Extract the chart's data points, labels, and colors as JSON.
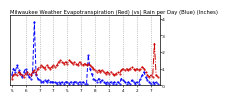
{
  "title": "Milwaukee Weather Evapotranspiration (Red) (vs) Rain per Day (Blue) (Inches)",
  "rain": [
    0.06,
    0.1,
    0.08,
    0.12,
    0.09,
    0.07,
    0.05,
    0.08,
    0.1,
    0.07,
    0.05,
    0.04,
    0.08,
    0.38,
    0.06,
    0.04,
    0.03,
    0.02,
    0.02,
    0.03,
    0.02,
    0.03,
    0.02,
    0.02,
    0.02,
    0.02,
    0.01,
    0.02,
    0.01,
    0.02,
    0.01,
    0.02,
    0.02,
    0.01,
    0.02,
    0.01,
    0.02,
    0.02,
    0.01,
    0.02,
    0.01,
    0.02,
    0.01,
    0.01,
    0.18,
    0.1,
    0.07,
    0.04,
    0.03,
    0.02,
    0.04,
    0.02,
    0.03,
    0.02,
    0.01,
    0.02,
    0.01,
    0.02,
    0.01,
    0.02,
    0.01,
    0.02,
    0.01,
    0.04,
    0.03,
    0.02,
    0.01,
    0.02,
    0.01,
    0.03,
    0.02,
    0.01,
    0.02,
    0.01,
    0.04,
    0.06,
    0.08,
    0.05,
    0.03,
    0.02,
    0.01,
    0.02,
    0.01,
    0.02,
    0.01
  ],
  "et": [
    0.04,
    0.06,
    0.07,
    0.06,
    0.08,
    0.07,
    0.06,
    0.05,
    0.07,
    0.08,
    0.07,
    0.06,
    0.08,
    0.09,
    0.07,
    0.1,
    0.11,
    0.12,
    0.11,
    0.1,
    0.12,
    0.11,
    0.1,
    0.11,
    0.12,
    0.11,
    0.12,
    0.14,
    0.15,
    0.14,
    0.13,
    0.14,
    0.13,
    0.15,
    0.14,
    0.13,
    0.14,
    0.13,
    0.12,
    0.14,
    0.13,
    0.12,
    0.13,
    0.12,
    0.13,
    0.12,
    0.11,
    0.1,
    0.09,
    0.08,
    0.09,
    0.08,
    0.09,
    0.08,
    0.07,
    0.08,
    0.07,
    0.08,
    0.07,
    0.06,
    0.07,
    0.08,
    0.07,
    0.09,
    0.1,
    0.09,
    0.1,
    0.09,
    0.1,
    0.11,
    0.1,
    0.09,
    0.1,
    0.09,
    0.1,
    0.11,
    0.1,
    0.08,
    0.06,
    0.05,
    0.06,
    0.05,
    0.25,
    0.06,
    0.05
  ],
  "vline_positions": [
    8,
    16,
    24,
    32,
    40,
    48,
    56,
    64,
    72,
    80
  ],
  "x_tick_positions": [
    0,
    8,
    16,
    24,
    32,
    40,
    48,
    56,
    64,
    72,
    80
  ],
  "x_tick_labels": [
    "5",
    "6",
    "7",
    "7",
    "5",
    "7",
    "8",
    "1",
    "4",
    "2",
    "7"
  ],
  "ylim": [
    0,
    0.42
  ],
  "yticks": [
    0.0,
    0.1,
    0.2,
    0.3,
    0.4
  ],
  "ytick_labels": [
    ".0",
    ".1",
    ".2",
    ".3",
    ".4"
  ],
  "rain_color": "#0000ff",
  "et_color": "#cc0000",
  "bg_color": "#ffffff",
  "title_fontsize": 3.8
}
